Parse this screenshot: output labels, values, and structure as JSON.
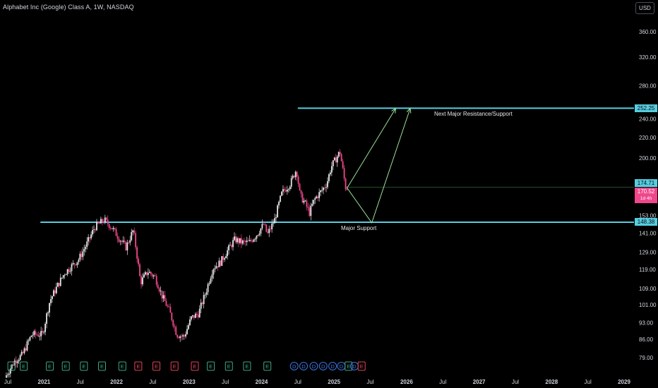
{
  "header": {
    "title": "Alphabet Inc (Google) Class A, 1W, NASDAQ",
    "currency_label": "USD"
  },
  "colors": {
    "up": "#e6e6e6",
    "down": "#f0478b",
    "level_line": "#56cde0",
    "projection": "#9be39b",
    "current_line": "#2f6d3e",
    "axis_text": "#d1d4dc",
    "earnings_green": "#3fa785",
    "earnings_red": "#e0455b",
    "dividend_blue": "#3d73e0"
  },
  "annotations": {
    "resistance_label": "Next Major Resistance/Support",
    "support_label": "Major Support"
  },
  "price_badges": {
    "resistance": "252.25",
    "last_close": "174.71",
    "current": "170.52",
    "countdown": "1d 4h",
    "support": "148.38"
  },
  "chart_data": {
    "type": "candlestick",
    "title": "Alphabet Inc (Google) Class A, 1W, NASDAQ",
    "scale": "log",
    "y_ticks": [
      360,
      320,
      280,
      240,
      220,
      200,
      153,
      141,
      129,
      119,
      109,
      101,
      93,
      86,
      79
    ],
    "y_range": [
      76,
      380
    ],
    "x_ticks": [
      "Jul",
      "2021",
      "Jul",
      "2022",
      "Jul",
      "2023",
      "Jul",
      "2024",
      "Jul",
      "2025",
      "Jul",
      "2026",
      "Jul",
      "2027",
      "Jul",
      "2028",
      "Jul",
      "2029"
    ],
    "x_tick_dates": [
      2020.5,
      2021,
      2021.5,
      2022,
      2022.5,
      2023,
      2023.5,
      2024,
      2024.5,
      2025,
      2025.5,
      2026,
      2026.5,
      2027,
      2027.5,
      2028,
      2028.5,
      2029
    ],
    "price_path": [
      [
        2020.48,
        72
      ],
      [
        2020.62,
        78
      ],
      [
        2020.72,
        80
      ],
      [
        2020.85,
        88
      ],
      [
        2021.0,
        88
      ],
      [
        2021.1,
        103
      ],
      [
        2021.3,
        117
      ],
      [
        2021.5,
        125
      ],
      [
        2021.62,
        135
      ],
      [
        2021.72,
        145
      ],
      [
        2021.85,
        150
      ],
      [
        2021.95,
        145
      ],
      [
        2022.05,
        138
      ],
      [
        2022.15,
        132
      ],
      [
        2022.25,
        143
      ],
      [
        2022.35,
        112
      ],
      [
        2022.45,
        118
      ],
      [
        2022.55,
        115
      ],
      [
        2022.65,
        105
      ],
      [
        2022.75,
        98
      ],
      [
        2022.85,
        88
      ],
      [
        2022.95,
        87
      ],
      [
        2023.05,
        95
      ],
      [
        2023.15,
        97
      ],
      [
        2023.25,
        107
      ],
      [
        2023.35,
        120
      ],
      [
        2023.45,
        123
      ],
      [
        2023.55,
        130
      ],
      [
        2023.65,
        137
      ],
      [
        2023.75,
        135
      ],
      [
        2023.85,
        135
      ],
      [
        2023.95,
        140
      ],
      [
        2024.05,
        147
      ],
      [
        2024.1,
        140
      ],
      [
        2024.2,
        150
      ],
      [
        2024.3,
        170
      ],
      [
        2024.42,
        178
      ],
      [
        2024.5,
        190
      ],
      [
        2024.55,
        168
      ],
      [
        2024.62,
        162
      ],
      [
        2024.68,
        155
      ],
      [
        2024.75,
        165
      ],
      [
        2024.85,
        172
      ],
      [
        2024.92,
        178
      ],
      [
        2024.98,
        192
      ],
      [
        2025.05,
        200
      ],
      [
        2025.1,
        206
      ],
      [
        2025.15,
        185
      ],
      [
        2025.18,
        174
      ]
    ],
    "horizontal_levels": [
      {
        "label": "Next Major Resistance/Support",
        "value": 252.25,
        "x_start": 2024.5
      },
      {
        "label": "Major Support",
        "value": 148.38,
        "x_start": 2020.95
      }
    ],
    "current_price_line": {
      "value": 174.71,
      "x_start": 2025.15
    },
    "projections": [
      {
        "points": [
          [
            2025.18,
            174
          ],
          [
            2025.85,
            252
          ]
        ]
      },
      {
        "points": [
          [
            2025.18,
            174
          ],
          [
            2025.52,
            148
          ],
          [
            2026.05,
            252
          ]
        ]
      }
    ],
    "events": [
      {
        "type": "E",
        "x": 2020.55,
        "color": "green"
      },
      {
        "type": "E",
        "x": 2020.72,
        "color": "green"
      },
      {
        "type": "E",
        "x": 2021.08,
        "color": "green"
      },
      {
        "type": "E",
        "x": 2021.3,
        "color": "green"
      },
      {
        "type": "E",
        "x": 2021.55,
        "color": "green"
      },
      {
        "type": "E",
        "x": 2021.8,
        "color": "green"
      },
      {
        "type": "E",
        "x": 2022.08,
        "color": "green"
      },
      {
        "type": "E",
        "x": 2022.3,
        "color": "red"
      },
      {
        "type": "E",
        "x": 2022.55,
        "color": "red"
      },
      {
        "type": "E",
        "x": 2022.8,
        "color": "red"
      },
      {
        "type": "E",
        "x": 2023.08,
        "color": "red"
      },
      {
        "type": "E",
        "x": 2023.3,
        "color": "green"
      },
      {
        "type": "E",
        "x": 2023.55,
        "color": "green"
      },
      {
        "type": "E",
        "x": 2023.8,
        "color": "green"
      },
      {
        "type": "E",
        "x": 2024.08,
        "color": "green"
      },
      {
        "type": "D",
        "x": 2024.45,
        "color": "blue"
      },
      {
        "type": "D",
        "x": 2024.58,
        "color": "blue"
      },
      {
        "type": "D",
        "x": 2024.72,
        "color": "blue"
      },
      {
        "type": "D",
        "x": 2024.85,
        "color": "blue"
      },
      {
        "type": "D",
        "x": 2024.98,
        "color": "blue"
      },
      {
        "type": "D",
        "x": 2025.1,
        "color": "blue"
      },
      {
        "type": "E",
        "x": 2025.2,
        "color": "green"
      },
      {
        "type": "D",
        "x": 2025.28,
        "color": "blue"
      },
      {
        "type": "E",
        "x": 2025.38,
        "color": "red"
      }
    ]
  }
}
